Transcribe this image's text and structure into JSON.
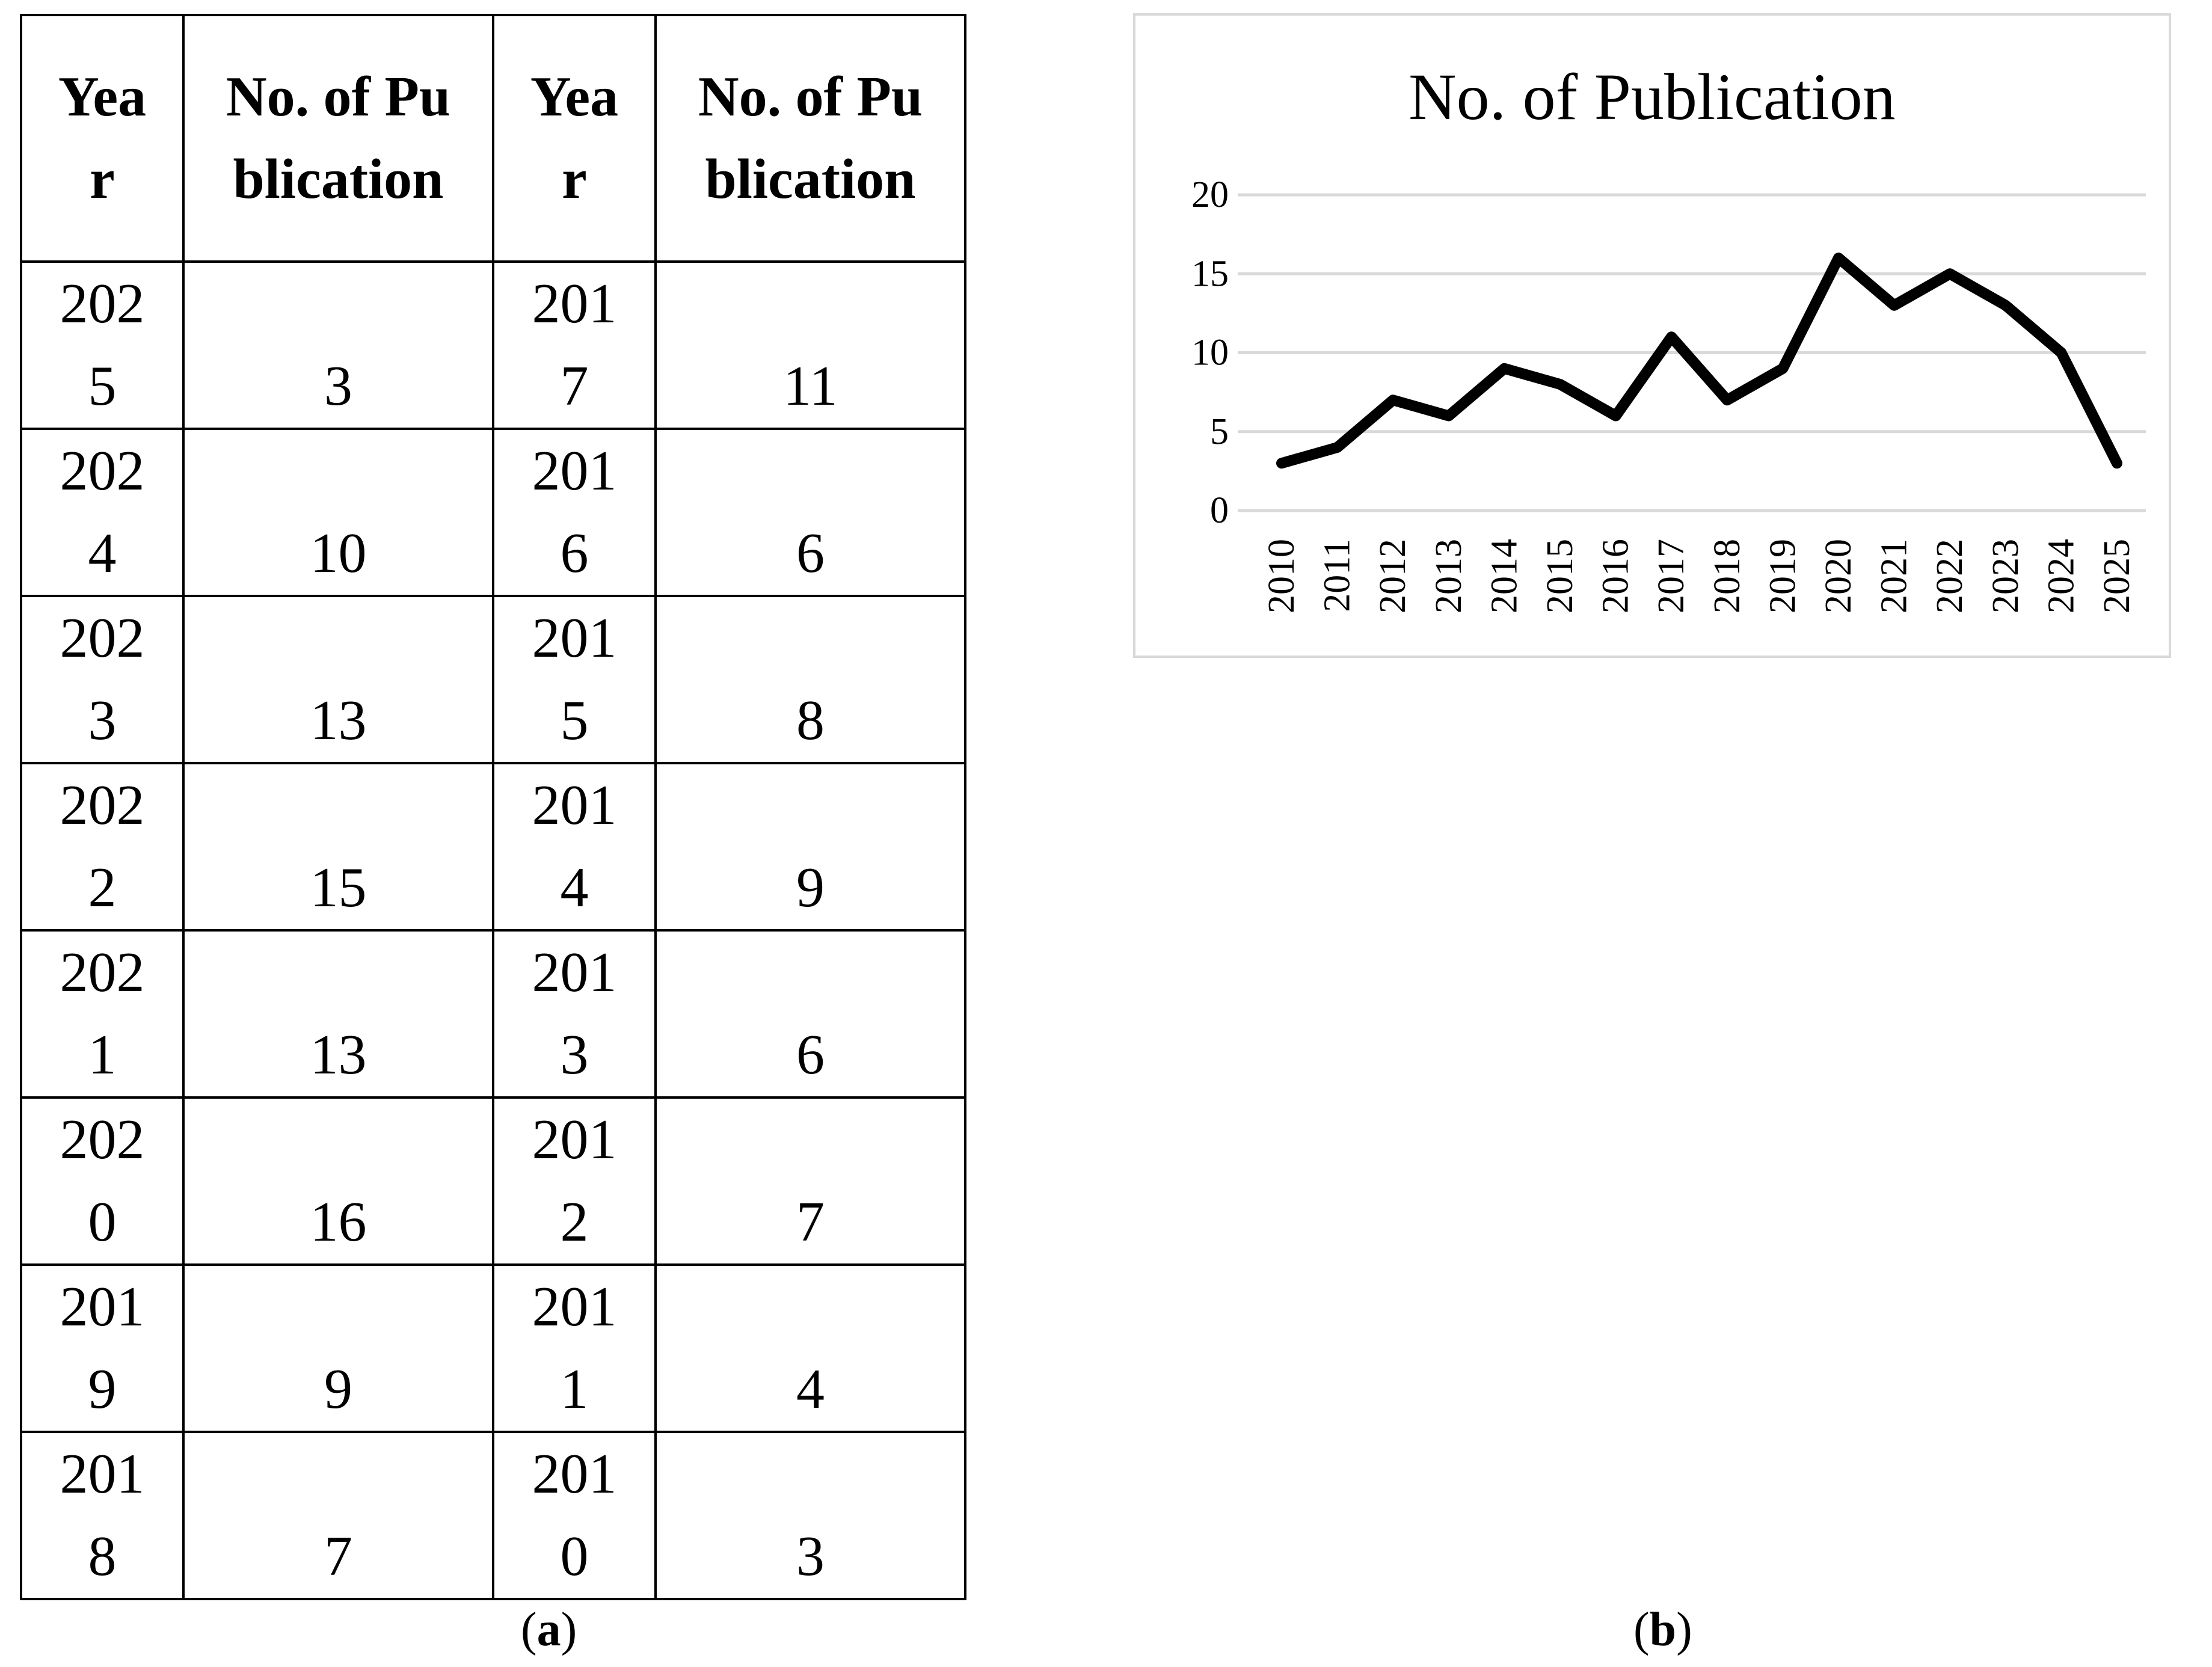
{
  "table": {
    "headers": [
      "Year",
      "No. of Publication",
      "Year",
      "No. of Publication"
    ],
    "rows": [
      [
        "2025",
        "3",
        "2017",
        "11"
      ],
      [
        "2024",
        "10",
        "2016",
        "6"
      ],
      [
        "2023",
        "13",
        "2015",
        "8"
      ],
      [
        "2022",
        "15",
        "2014",
        "9"
      ],
      [
        "2021",
        "13",
        "2013",
        "6"
      ],
      [
        "2020",
        "16",
        "2012",
        "7"
      ],
      [
        "2019",
        "9",
        "2011",
        "4"
      ],
      [
        "2018",
        "7",
        "2010",
        "3"
      ]
    ]
  },
  "captions": {
    "a": {
      "open": "(",
      "letter": "a",
      "close": ")"
    },
    "b": {
      "open": "(",
      "letter": "b",
      "close": ")"
    }
  },
  "chart_data": {
    "type": "line",
    "title": "No. of Publication",
    "x": [
      "2010",
      "2011",
      "2012",
      "2013",
      "2014",
      "2015",
      "2016",
      "2017",
      "2018",
      "2019",
      "2020",
      "2021",
      "2022",
      "2023",
      "2024",
      "2025"
    ],
    "series": [
      {
        "values": [
          3,
          4,
          7,
          6,
          9,
          8,
          6,
          11,
          7,
          9,
          16,
          13,
          15,
          13,
          10,
          3
        ]
      }
    ],
    "yticks": [
      0,
      5,
      10,
      15,
      20
    ],
    "ylim": [
      0,
      20
    ],
    "xlabel": "",
    "ylabel": "",
    "grid": true,
    "legend": "none",
    "line_color": "#000000",
    "grid_color": "#d9d9d9"
  }
}
